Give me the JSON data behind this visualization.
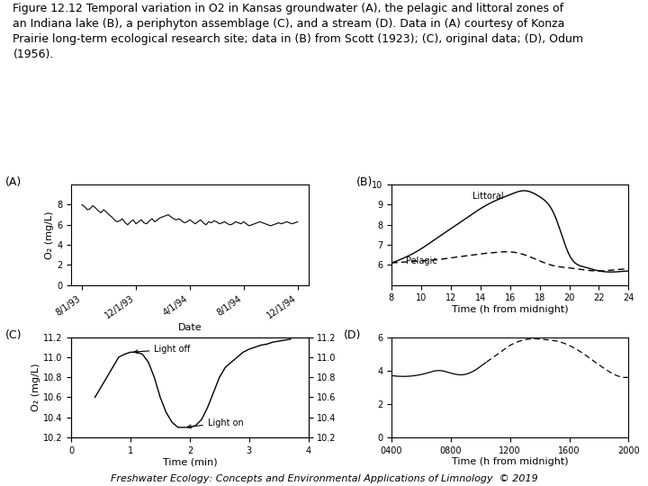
{
  "title_text": "Figure 12.12 Temporal variation in O2 in Kansas groundwater (A), the pelagic and littoral zones of\nan Indiana lake (B), a periphyton assemblage (C), and a stream (D). Data in (A) courtesy of Konza\nPrairie long-term ecological research site; data in (B) from Scott (1923); (C), original data; (D), Odum\n(1956).",
  "footer_text": "Freshwater Ecology: Concepts and Environmental Applications of Limnology  © 2019",
  "panel_A": {
    "label": "(A)",
    "ylabel": "O₂ (mg/L)",
    "xlabel": "Date",
    "ylim": [
      0,
      10
    ],
    "yticks": [
      0,
      2,
      4,
      6,
      8
    ],
    "xtick_labels": [
      "8/1/93",
      "12/1/93",
      "4/1/94",
      "8/1/94",
      "12/1/94"
    ],
    "x_data": [
      0,
      0.012,
      0.025,
      0.037,
      0.05,
      0.062,
      0.075,
      0.087,
      0.1,
      0.112,
      0.125,
      0.137,
      0.15,
      0.162,
      0.175,
      0.187,
      0.2,
      0.212,
      0.225,
      0.237,
      0.25,
      0.262,
      0.275,
      0.287,
      0.3,
      0.312,
      0.325,
      0.337,
      0.35,
      0.362,
      0.375,
      0.387,
      0.4,
      0.412,
      0.425,
      0.437,
      0.45,
      0.462,
      0.475,
      0.487,
      0.5,
      0.512,
      0.525,
      0.537,
      0.55,
      0.562,
      0.575,
      0.587,
      0.6,
      0.612,
      0.625,
      0.637,
      0.65,
      0.662,
      0.675,
      0.687,
      0.7,
      0.712,
      0.725,
      0.737,
      0.75,
      0.762,
      0.775,
      0.787,
      0.8,
      0.812,
      0.825,
      0.837,
      0.85,
      0.862,
      0.875,
      0.887,
      0.9,
      0.912,
      0.925,
      0.937,
      0.95,
      0.962,
      0.975,
      1.0
    ],
    "y_data": [
      8.0,
      7.8,
      7.5,
      7.6,
      7.9,
      7.7,
      7.4,
      7.2,
      7.5,
      7.3,
      7.0,
      6.8,
      6.5,
      6.3,
      6.4,
      6.6,
      6.2,
      6.0,
      6.3,
      6.5,
      6.1,
      6.3,
      6.5,
      6.2,
      6.1,
      6.4,
      6.6,
      6.3,
      6.5,
      6.7,
      6.8,
      6.9,
      7.0,
      6.8,
      6.6,
      6.5,
      6.6,
      6.4,
      6.2,
      6.3,
      6.5,
      6.3,
      6.1,
      6.3,
      6.5,
      6.2,
      6.0,
      6.3,
      6.2,
      6.4,
      6.3,
      6.1,
      6.2,
      6.3,
      6.1,
      6.0,
      6.1,
      6.3,
      6.2,
      6.1,
      6.3,
      6.1,
      5.9,
      6.0,
      6.1,
      6.2,
      6.3,
      6.2,
      6.1,
      6.0,
      5.9,
      6.0,
      6.1,
      6.2,
      6.1,
      6.2,
      6.3,
      6.2,
      6.1,
      6.3
    ]
  },
  "panel_B": {
    "label": "(B)",
    "xlabel": "Time (h from midnight)",
    "ylim": [
      5,
      10
    ],
    "yticks": [
      6,
      7,
      8,
      9,
      10
    ],
    "xticks": [
      8,
      10,
      12,
      14,
      16,
      18,
      20,
      22,
      24
    ],
    "littoral_label": "Littoral",
    "pelagic_label": "Pelagic",
    "x_lit": [
      8,
      9,
      10,
      11,
      12,
      13,
      14,
      15,
      16,
      17,
      18,
      19,
      20,
      21,
      22,
      23,
      24
    ],
    "y_lit": [
      6.1,
      6.4,
      6.8,
      7.3,
      7.8,
      8.3,
      8.8,
      9.2,
      9.5,
      9.7,
      9.4,
      8.5,
      6.5,
      5.9,
      5.7,
      5.65,
      5.7
    ],
    "x_pel": [
      8,
      9,
      10,
      11,
      12,
      13,
      14,
      15,
      16,
      17,
      18,
      19,
      20,
      21,
      22,
      23,
      24
    ],
    "y_pel": [
      6.1,
      6.15,
      6.2,
      6.25,
      6.35,
      6.45,
      6.55,
      6.62,
      6.65,
      6.5,
      6.2,
      5.95,
      5.85,
      5.75,
      5.7,
      5.75,
      5.8
    ]
  },
  "panel_C": {
    "label": "(C)",
    "ylabel": "O₂ (mg/L)",
    "xlabel": "Time (min)",
    "ylim": [
      10.2,
      11.2
    ],
    "yticks": [
      10.2,
      10.4,
      10.6,
      10.8,
      11.0,
      11.2
    ],
    "xticks": [
      0,
      1,
      2,
      3,
      4
    ],
    "light_off_label": "Light off",
    "light_on_label": "Light on",
    "x_data": [
      0.4,
      0.5,
      0.6,
      0.7,
      0.8,
      0.9,
      1.0,
      1.1,
      1.2,
      1.3,
      1.4,
      1.5,
      1.6,
      1.7,
      1.8,
      1.9,
      2.0,
      2.1,
      2.2,
      2.3,
      2.4,
      2.5,
      2.6,
      2.7,
      2.8,
      2.9,
      3.0,
      3.1,
      3.2,
      3.3,
      3.4,
      3.5,
      3.6,
      3.7
    ],
    "y_data": [
      10.6,
      10.7,
      10.8,
      10.9,
      11.0,
      11.03,
      11.05,
      11.05,
      11.03,
      10.95,
      10.8,
      10.6,
      10.45,
      10.35,
      10.3,
      10.3,
      10.3,
      10.32,
      10.38,
      10.5,
      10.65,
      10.8,
      10.9,
      10.95,
      11.0,
      11.05,
      11.08,
      11.1,
      11.12,
      11.13,
      11.15,
      11.16,
      11.17,
      11.18
    ]
  },
  "panel_D": {
    "label": "(D)",
    "xlabel": "Time (h from midnight)",
    "ylim": [
      0,
      6
    ],
    "yticks": [
      0,
      2,
      4,
      6
    ],
    "xtick_labels": [
      "0400",
      "0800",
      "1200",
      "1600",
      "2000"
    ],
    "x_data": [
      0,
      0.2,
      0.4,
      0.6,
      0.8,
      1.0,
      1.2,
      1.4,
      1.6,
      1.8,
      2.0,
      2.2,
      2.4,
      2.6,
      2.8,
      3.0,
      3.2,
      3.4,
      3.6,
      3.8,
      4.0
    ],
    "y_data": [
      3.7,
      3.65,
      3.7,
      3.85,
      4.0,
      3.85,
      3.75,
      4.0,
      4.5,
      5.0,
      5.5,
      5.8,
      5.9,
      5.85,
      5.75,
      5.5,
      5.1,
      4.6,
      4.1,
      3.7,
      3.6
    ],
    "x_solid_end": 1.6,
    "x_dash_start": 1.6
  },
  "line_color": "#000000",
  "bg_color": "#ffffff",
  "title_fontsize": 9,
  "label_fontsize": 8,
  "tick_fontsize": 7,
  "footer_fontsize": 8
}
